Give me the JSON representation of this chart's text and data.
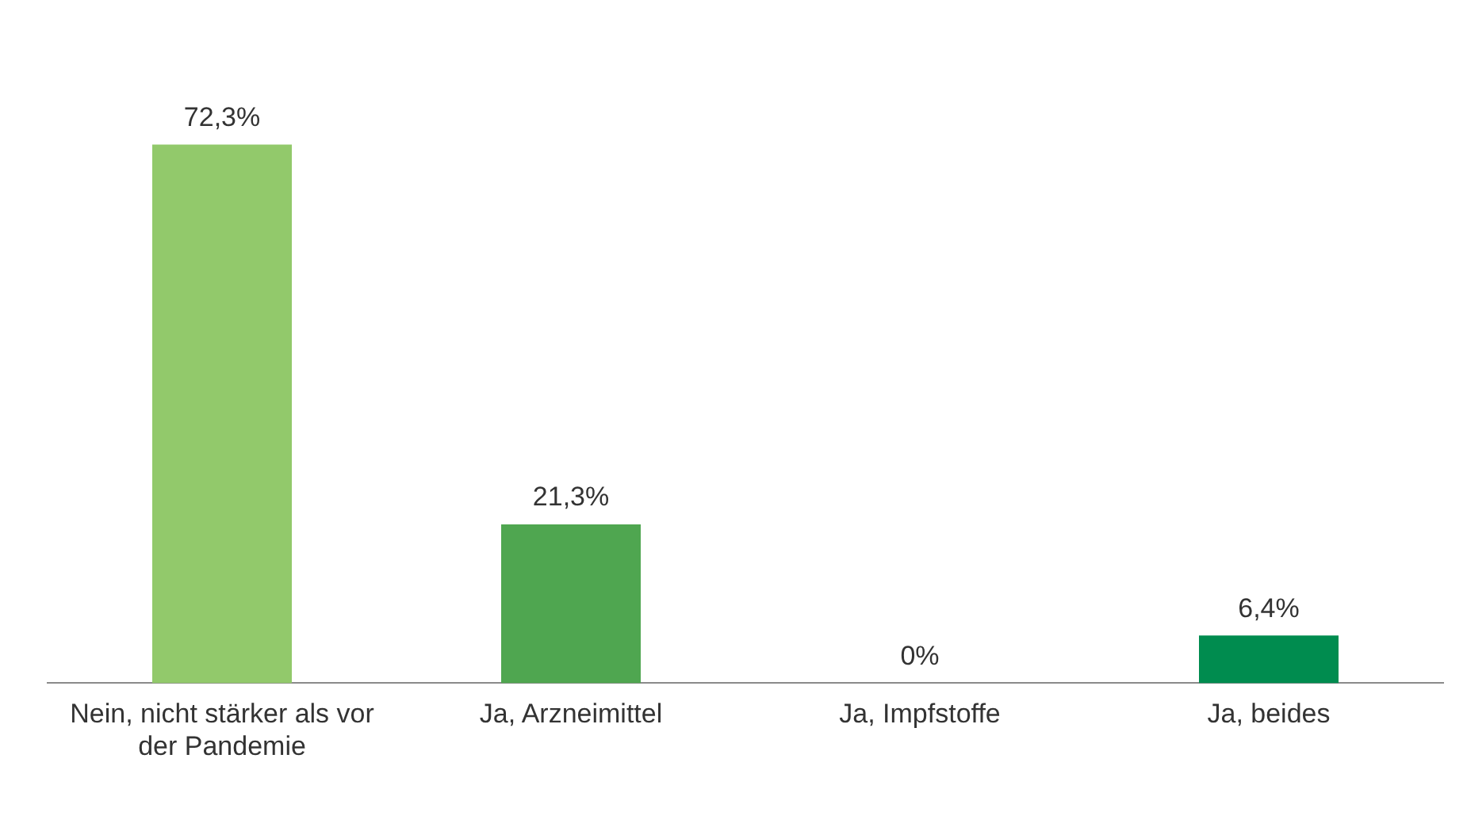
{
  "chart_data": {
    "type": "bar",
    "categories": [
      "Nein, nicht stärker als vor der Pandemie",
      "Ja, Arzneimittel",
      "Ja, Impfstoffe",
      "Ja, beides"
    ],
    "values": [
      72.3,
      21.3,
      0,
      6.4
    ],
    "colors": [
      "#92c96b",
      "#4fa650",
      "#4fa650",
      "#008c4f"
    ],
    "value_labels": [
      "72,3%",
      "21,3%",
      "0%",
      "6,4%"
    ],
    "grid": false,
    "legend": false
  }
}
